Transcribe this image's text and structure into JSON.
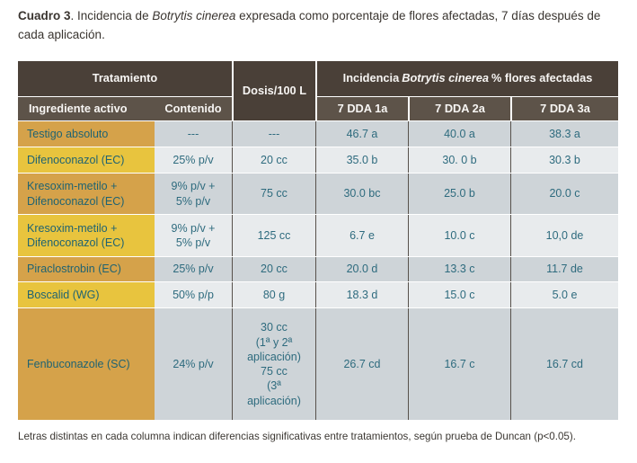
{
  "page": {
    "title": {
      "label": "Cuadro 3",
      "pre": ". Incidencia de ",
      "italic": "Botrytis cinerea",
      "post": " expresada como porcentaje de flores afectadas, 7 días después de cada aplicación."
    },
    "footnote": "Letras distintas en cada columna indican diferencias significativas entre tratamientos, según prueba de Duncan (p<0.05)."
  },
  "table": {
    "header": {
      "tratamiento": "Tratamiento",
      "ingrediente_activo": "Ingrediente activo",
      "contenido": "Contenido",
      "dosis": "Dosis/100 L",
      "incidencia_pre": "Incidencia",
      "incidencia_italic": "Botrytis cinerea",
      "incidencia_post": "% flores afectadas",
      "dda": [
        "7 DDA 1a",
        "7 DDA 2a",
        "7 DDA 3a"
      ]
    },
    "rows": [
      {
        "ingrediente": "Testigo absoluto",
        "contenido": "---",
        "dosis": "---",
        "dda1": "46.7 a",
        "dda2": "40.0 a",
        "dda3": "38.3 a"
      },
      {
        "ingrediente": "Difenoconazol (EC)",
        "contenido": "25% p/v",
        "dosis": "20 cc",
        "dda1": "35.0 b",
        "dda2": "30. 0 b",
        "dda3": "30.3 b"
      },
      {
        "ingrediente": "Kresoxim-metilo + Difenoconazol (EC)",
        "contenido": "9% p/v +\n5% p/v",
        "dosis": "75 cc",
        "dda1": "30.0 bc",
        "dda2": "25.0 b",
        "dda3": "20.0 c"
      },
      {
        "ingrediente": "Kresoxim-metilo + Difenoconazol (EC)",
        "contenido": "9% p/v +\n5% p/v",
        "dosis": "125 cc",
        "dda1": "6.7 e",
        "dda2": "10.0 c",
        "dda3": "10,0 de"
      },
      {
        "ingrediente": "Piraclostrobin (EC)",
        "contenido": "25% p/v",
        "dosis": "20 cc",
        "dda1": "20.0 d",
        "dda2": "13.3 c",
        "dda3": "11.7 de"
      },
      {
        "ingrediente": "Boscalid (WG)",
        "contenido": "50% p/p",
        "dosis": "80 g",
        "dda1": "18.3 d",
        "dda2": "15.0 c",
        "dda3": "5.0 e"
      },
      {
        "ingrediente": "Fenbuconazole (SC)",
        "contenido": "24% p/v",
        "dosis": "30 cc\n(1ª y 2ª\naplicación)\n75 cc\n(3ª\naplicación)",
        "dda1": "26.7 cd",
        "dda2": "16.7 c",
        "dda3": "16.7 cd"
      }
    ]
  },
  "colors": {
    "header_dark": "#4a4038",
    "header_light": "#5d5349",
    "col1_ochre": "#d5a24a",
    "col1_yellow": "#e8c43e",
    "row_dark": "#ced4d8",
    "row_light": "#e8ebed",
    "body_text": "#2e6b7e",
    "name_text": "#1f6372",
    "divider": "#57514b"
  }
}
